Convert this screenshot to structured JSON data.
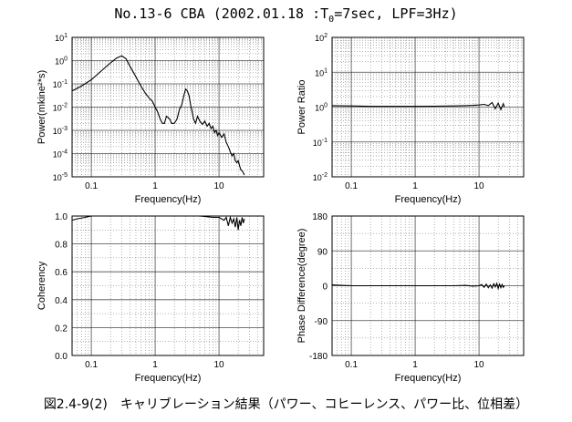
{
  "title": {
    "prefix": "No.13-6 CBA (2002.01.18 :T",
    "subscript": "0",
    "suffix": "=7sec, LPF=3Hz)"
  },
  "caption": "図2.4-9(2)　キャリブレーション結果（パワー、コヒーレンス、パワー比、位相差）",
  "chart_data": [
    {
      "id": "power",
      "type": "line",
      "xlabel": "Frequency(Hz)",
      "ylabel": "Power(mkine²*s)",
      "xscale": "log",
      "yscale": "log",
      "xlim": [
        0.05,
        50
      ],
      "ylim": [
        1e-05,
        10
      ],
      "xticks": [
        {
          "v": 0.1,
          "label": "0.1"
        },
        {
          "v": 1,
          "label": "1"
        },
        {
          "v": 10,
          "label": "10"
        }
      ],
      "yticks": [
        {
          "v": 10,
          "base": "10",
          "exp": "1"
        },
        {
          "v": 1,
          "base": "10",
          "exp": "0"
        },
        {
          "v": 0.1,
          "base": "10",
          "exp": "-1"
        },
        {
          "v": 0.01,
          "base": "10",
          "exp": "-2"
        },
        {
          "v": 0.001,
          "base": "10",
          "exp": "-3"
        },
        {
          "v": 0.0001,
          "base": "10",
          "exp": "-4"
        },
        {
          "v": 1e-05,
          "base": "10",
          "exp": "-5"
        }
      ],
      "grid": true,
      "series": [
        {
          "x": [
            0.05,
            0.07,
            0.1,
            0.15,
            0.2,
            0.25,
            0.3,
            0.35,
            0.4,
            0.5,
            0.6,
            0.7,
            0.8,
            0.9,
            1.0,
            1.1,
            1.2,
            1.3,
            1.4,
            1.5,
            1.6,
            1.7,
            1.8,
            2.0,
            2.2,
            2.4,
            2.6,
            2.8,
            3.0,
            3.2,
            3.4,
            3.6,
            3.8,
            4.0,
            4.3,
            4.6,
            5.0,
            5.5,
            6.0,
            6.5,
            7.0,
            7.5,
            8.0,
            8.5,
            9.0,
            9.5,
            10,
            11,
            12,
            13,
            14,
            15,
            16,
            17,
            18,
            19,
            20,
            21,
            22,
            23,
            24,
            25
          ],
          "y": [
            0.05,
            0.08,
            0.15,
            0.4,
            0.8,
            1.3,
            1.6,
            1.2,
            0.6,
            0.2,
            0.08,
            0.04,
            0.025,
            0.018,
            0.01,
            0.006,
            0.003,
            0.002,
            0.002,
            0.004,
            0.0035,
            0.003,
            0.002,
            0.002,
            0.003,
            0.008,
            0.012,
            0.03,
            0.06,
            0.05,
            0.03,
            0.012,
            0.006,
            0.003,
            0.002,
            0.004,
            0.0025,
            0.0018,
            0.0025,
            0.0015,
            0.002,
            0.0012,
            0.0015,
            0.0008,
            0.001,
            0.0006,
            0.0008,
            0.0005,
            0.0007,
            0.0003,
            0.0002,
            0.00012,
            8e-05,
            0.0001,
            5e-05,
            4e-05,
            5e-05,
            3e-05,
            2e-05,
            1.8e-05,
            1.5e-05,
            1.2e-05
          ]
        }
      ]
    },
    {
      "id": "power-ratio",
      "type": "line",
      "xlabel": "Frequency(Hz)",
      "ylabel": "Power Ratio",
      "xscale": "log",
      "yscale": "log",
      "xlim": [
        0.05,
        50
      ],
      "ylim": [
        0.01,
        100
      ],
      "xticks": [
        {
          "v": 0.1,
          "label": "0.1"
        },
        {
          "v": 1,
          "label": "1"
        },
        {
          "v": 10,
          "label": "10"
        }
      ],
      "yticks": [
        {
          "v": 100,
          "base": "10",
          "exp": "2"
        },
        {
          "v": 10,
          "base": "10",
          "exp": "1"
        },
        {
          "v": 1,
          "base": "10",
          "exp": "0"
        },
        {
          "v": 0.1,
          "base": "10",
          "exp": "-1"
        },
        {
          "v": 0.01,
          "base": "10",
          "exp": "-2"
        }
      ],
      "grid": true,
      "series": [
        {
          "x": [
            0.05,
            0.1,
            0.2,
            0.5,
            1,
            2,
            4,
            6,
            8,
            10,
            12,
            14,
            16,
            18,
            20,
            22,
            24,
            25
          ],
          "y": [
            1.1,
            1.08,
            1.05,
            1.05,
            1.05,
            1.06,
            1.08,
            1.1,
            1.12,
            1.15,
            1.2,
            1.1,
            1.35,
            0.9,
            1.3,
            0.85,
            1.25,
            1.0
          ]
        }
      ]
    },
    {
      "id": "coherency",
      "type": "line",
      "xlabel": "Frequency(Hz)",
      "ylabel": "Coherency",
      "xscale": "log",
      "yscale": "linear",
      "xlim": [
        0.05,
        50
      ],
      "ylim": [
        0,
        1.0
      ],
      "xticks": [
        {
          "v": 0.1,
          "label": "0.1"
        },
        {
          "v": 1,
          "label": "1"
        },
        {
          "v": 10,
          "label": "10"
        }
      ],
      "yticks": [
        {
          "v": 1.0,
          "label": "1.0"
        },
        {
          "v": 0.8,
          "label": "0.8"
        },
        {
          "v": 0.6,
          "label": "0.6"
        },
        {
          "v": 0.4,
          "label": "0.4"
        },
        {
          "v": 0.2,
          "label": "0.2"
        },
        {
          "v": 0.0,
          "label": "0.0"
        }
      ],
      "grid": true,
      "series": [
        {
          "x": [
            0.05,
            0.06,
            0.08,
            0.1,
            0.2,
            0.5,
            1,
            2,
            5,
            8,
            10,
            12,
            13,
            14,
            15,
            16,
            17,
            18,
            19,
            20,
            21,
            22,
            23,
            24,
            25
          ],
          "y": [
            0.97,
            0.98,
            0.99,
            1.0,
            1.0,
            1.0,
            1.0,
            1.0,
            1.0,
            0.99,
            0.99,
            0.97,
            0.99,
            0.93,
            0.99,
            0.95,
            0.98,
            0.92,
            0.99,
            0.9,
            0.97,
            0.93,
            0.99,
            0.95,
            0.98
          ]
        }
      ]
    },
    {
      "id": "phase-difference",
      "type": "line",
      "xlabel": "Frequency(Hz)",
      "ylabel": "Phase Difference(degree)",
      "xscale": "log",
      "yscale": "linear",
      "xlim": [
        0.05,
        50
      ],
      "ylim": [
        -180,
        180
      ],
      "xticks": [
        {
          "v": 0.1,
          "label": "0.1"
        },
        {
          "v": 1,
          "label": "1"
        },
        {
          "v": 10,
          "label": "10"
        }
      ],
      "yticks": [
        {
          "v": 180,
          "label": "180"
        },
        {
          "v": 90,
          "label": "90"
        },
        {
          "v": 0,
          "label": "0"
        },
        {
          "v": -90,
          "label": "-90"
        },
        {
          "v": -180,
          "label": "-180"
        }
      ],
      "grid": true,
      "series": [
        {
          "x": [
            0.05,
            0.07,
            0.1,
            0.2,
            0.5,
            1,
            2,
            4,
            6,
            8,
            10,
            11,
            12,
            13,
            14,
            15,
            16,
            17,
            18,
            19,
            20,
            21,
            22,
            23,
            24,
            25
          ],
          "y": [
            2,
            1,
            0,
            0,
            0,
            0,
            0,
            0,
            1,
            -1,
            0,
            3,
            -4,
            4,
            -5,
            2,
            -6,
            5,
            -3,
            6,
            -7,
            4,
            -5,
            3,
            -4,
            0
          ]
        }
      ]
    }
  ],
  "colors": {
    "line": "#000000",
    "grid": "#000000"
  }
}
